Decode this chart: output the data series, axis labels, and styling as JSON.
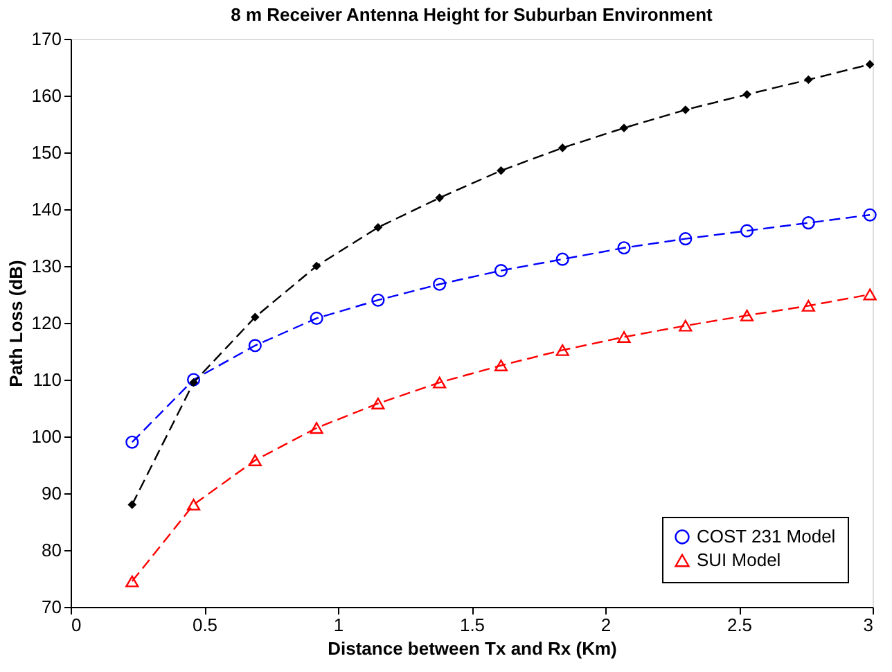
{
  "chart_data": {
    "type": "line",
    "title": "8 m Receiver Antenna Height for Suburban Environment",
    "xlabel": "Distance between Tx and Rx  (Km)",
    "ylabel": "Path Loss  (dB)",
    "x": [
      0.23,
      0.46,
      0.69,
      0.92,
      1.15,
      1.38,
      1.61,
      1.84,
      2.07,
      2.3,
      2.53,
      2.76,
      2.99
    ],
    "xlim": [
      0,
      3
    ],
    "xticks": [
      0,
      0.5,
      1,
      1.5,
      2,
      2.5,
      3
    ],
    "ylim": [
      70,
      170
    ],
    "yticks": [
      70,
      80,
      90,
      100,
      110,
      120,
      130,
      140,
      150,
      160,
      170
    ],
    "grid": false,
    "legend": "bottom right",
    "line_style": "dashed",
    "series": [
      {
        "name": "COST 231 Model",
        "color": "#0000ff",
        "marker": "circle",
        "values": [
          99,
          110,
          116,
          120.8,
          124,
          126.8,
          129.2,
          131.2,
          133.2,
          134.8,
          136.2,
          137.6,
          139
        ]
      },
      {
        "name": "SUI Model",
        "color": "#ff0000",
        "marker": "triangle",
        "values": [
          74.5,
          88,
          95.8,
          101.5,
          105.8,
          109.5,
          112.5,
          115.2,
          117.5,
          119.5,
          121.3,
          123,
          125
        ]
      },
      {
        "color": "#000000",
        "marker": "diamond",
        "values": [
          88,
          109.5,
          121,
          130,
          136.8,
          142,
          146.8,
          150.8,
          154.3,
          157.5,
          160.2,
          162.8,
          165.5
        ]
      }
    ]
  }
}
